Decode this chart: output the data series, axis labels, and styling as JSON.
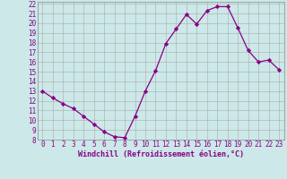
{
  "x": [
    0,
    1,
    2,
    3,
    4,
    5,
    6,
    7,
    8,
    9,
    10,
    11,
    12,
    13,
    14,
    15,
    16,
    17,
    18,
    19,
    20,
    21,
    22,
    23
  ],
  "y": [
    13.0,
    12.3,
    11.7,
    11.2,
    10.4,
    9.6,
    8.8,
    8.3,
    8.2,
    10.4,
    13.0,
    15.1,
    17.9,
    19.4,
    20.9,
    19.9,
    21.3,
    21.7,
    21.7,
    19.5,
    17.2,
    16.0,
    16.2,
    15.2
  ],
  "line_color": "#880088",
  "marker": "D",
  "marker_size": 2.2,
  "bg_color": "#cce8e8",
  "grid_color": "#aaaaaa",
  "xlabel": "Windchill (Refroidissement éolien,°C)",
  "xlabel_color": "#880088",
  "tick_color": "#880088",
  "ylim": [
    8,
    22
  ],
  "xlim": [
    -0.5,
    23.5
  ],
  "yticks": [
    8,
    9,
    10,
    11,
    12,
    13,
    14,
    15,
    16,
    17,
    18,
    19,
    20,
    21,
    22
  ],
  "xticks": [
    0,
    1,
    2,
    3,
    4,
    5,
    6,
    7,
    8,
    9,
    10,
    11,
    12,
    13,
    14,
    15,
    16,
    17,
    18,
    19,
    20,
    21,
    22,
    23
  ],
  "tick_fontsize": 5.5,
  "xlabel_fontsize": 6.0
}
